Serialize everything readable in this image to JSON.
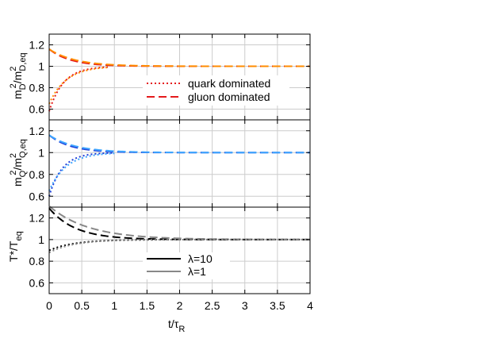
{
  "chart_data": [
    {
      "type": "line",
      "panel": "top",
      "ylabel": "m_D^2/m_{D,eq}^2",
      "xlim": [
        0,
        4
      ],
      "ylim": [
        0.5,
        1.3
      ],
      "yticks": [
        "0.6",
        "0.8",
        "1",
        "1.2"
      ],
      "ytick_values": [
        0.6,
        0.8,
        1.0,
        1.2
      ],
      "grid": true,
      "legend": {
        "placement": "right-middle",
        "entries": [
          {
            "label": "quark dominated",
            "style": "dotted",
            "color": "#e41a1c"
          },
          {
            "label": "gluon dominated",
            "style": "dashed",
            "color": "#e41a1c"
          }
        ]
      },
      "series": [
        {
          "init": 0.58,
          "tau": 0.22,
          "end": 0.9,
          "style": "dotted",
          "color": "#e41a1c"
        },
        {
          "init": 0.65,
          "tau": 0.26,
          "end": 0.9,
          "style": "dotted",
          "color": "#ff8c00"
        },
        {
          "init": 1.16,
          "tau": 0.33,
          "end": 4.0,
          "style": "dashed",
          "color": "#e41a1c"
        },
        {
          "init": 1.16,
          "tau": 0.4,
          "end": 4.0,
          "style": "dashed",
          "color": "#ff8c00"
        }
      ]
    },
    {
      "type": "line",
      "panel": "middle",
      "ylabel": "m_Q^2/m_{Q,eq}^2",
      "xlim": [
        0,
        4
      ],
      "ylim": [
        0.5,
        1.3
      ],
      "yticks": [
        "0.6",
        "0.8",
        "1",
        "1.2"
      ],
      "ytick_values": [
        0.6,
        0.8,
        1.0,
        1.2
      ],
      "grid": true,
      "series": [
        {
          "init": 0.6,
          "tau": 0.2,
          "end": 1.0,
          "style": "dotted",
          "color": "#1f3fd9"
        },
        {
          "init": 0.65,
          "tau": 0.26,
          "end": 1.0,
          "style": "dotted",
          "color": "#3da5ff"
        },
        {
          "init": 1.16,
          "tau": 0.33,
          "end": 4.0,
          "style": "dashed",
          "color": "#1f3fd9"
        },
        {
          "init": 1.16,
          "tau": 0.4,
          "end": 4.0,
          "style": "dashed",
          "color": "#3da5ff"
        }
      ]
    },
    {
      "type": "line",
      "panel": "bottom",
      "ylabel": "T*/T_eq",
      "xlabel": "t/τ_R",
      "xlim": [
        0,
        4
      ],
      "ylim": [
        0.5,
        1.3
      ],
      "xticks": [
        "0",
        "0.5",
        "1",
        "1.5",
        "2",
        "2.5",
        "3",
        "3.5",
        "4"
      ],
      "xtick_values": [
        0,
        0.5,
        1.0,
        1.5,
        2.0,
        2.5,
        3.0,
        3.5,
        4.0
      ],
      "yticks": [
        "0.6",
        "0.8",
        "1",
        "1.2"
      ],
      "ytick_values": [
        0.6,
        0.8,
        1.0,
        1.2
      ],
      "grid": true,
      "legend": {
        "placement": "right-middle",
        "entries": [
          {
            "label": "λ=10",
            "style": "solid",
            "color": "#000000"
          },
          {
            "label": "λ=1",
            "style": "solid",
            "color": "#888888"
          }
        ]
      },
      "series": [
        {
          "init": 1.29,
          "tau": 0.4,
          "end": 4.0,
          "style": "dashed",
          "color": "#000000"
        },
        {
          "init": 1.31,
          "tau": 0.6,
          "end": 4.0,
          "style": "dashed",
          "color": "#888888"
        },
        {
          "init": 0.9,
          "tau": 0.38,
          "end": 4.0,
          "style": "dotted",
          "color": "#000000"
        },
        {
          "init": 0.88,
          "tau": 0.38,
          "end": 4.0,
          "style": "dotted",
          "color": "#888888"
        }
      ]
    }
  ],
  "labels": {
    "xlabel_main": "t/τ",
    "xlabel_sub": "R",
    "top_y_main": "m",
    "top_y_sub1": "D",
    "top_y_sup1": "2",
    "top_y_slash": "/m",
    "top_y_sub2": "D,eq",
    "top_y_sup2": "2",
    "mid_y_main": "m",
    "mid_y_sub1": "Q",
    "mid_y_sup1": "2",
    "mid_y_slash": "/m",
    "mid_y_sub2": "Q,eq",
    "mid_y_sup2": "2",
    "bot_y_main": "T*/T",
    "bot_y_sub": "eq",
    "legend_top_1": "quark dominated",
    "legend_top_2": "gluon dominated",
    "legend_bot_1": "λ=10",
    "legend_bot_2": "λ=1"
  }
}
